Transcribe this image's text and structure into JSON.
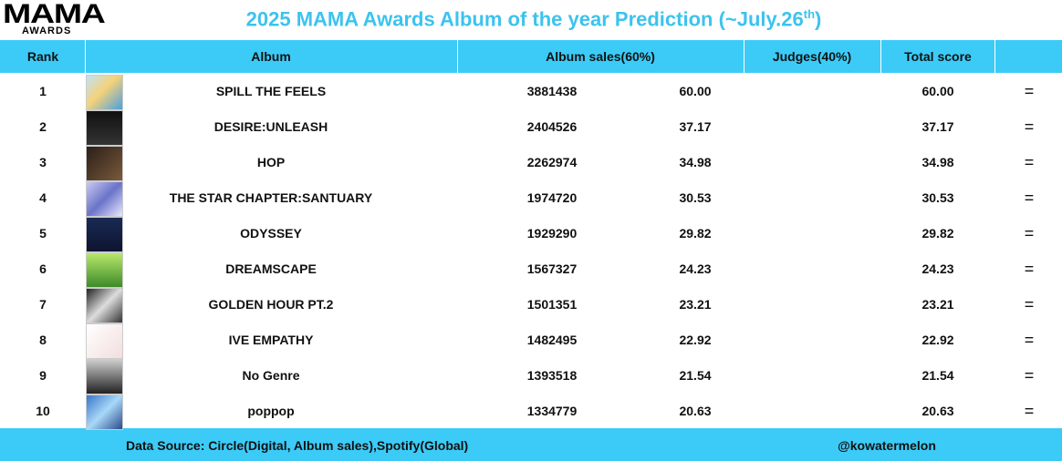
{
  "logo": {
    "main": "MAMA",
    "sub": "AWARDS"
  },
  "title": {
    "main": "2025 MAMA Awards Album of the year Prediction (~July.26",
    "sup": "th",
    "end": ")"
  },
  "table": {
    "header": [
      "Rank",
      "Album",
      "Album sales(60%)",
      "Judges(40%)",
      "Total score"
    ],
    "rows": [
      [
        "1",
        "SPILL THE FEELS",
        "3881438",
        "60.00",
        "60.00",
        "="
      ],
      [
        "2",
        "DESIRE:UNLEASH",
        "2404526",
        "37.17",
        "37.17",
        "="
      ],
      [
        "3",
        "HOP",
        "2262974",
        "34.98",
        "34.98",
        "="
      ],
      [
        "4",
        "THE STAR CHAPTER:SANTUARY",
        "1974720",
        "30.53",
        "30.53",
        "="
      ],
      [
        "5",
        "ODYSSEY",
        "1929290",
        "29.82",
        "29.82",
        "="
      ],
      [
        "6",
        "DREAMSCAPE",
        "1567327",
        "24.23",
        "24.23",
        "="
      ],
      [
        "7",
        "GOLDEN HOUR PT.2",
        "1501351",
        "23.21",
        "23.21",
        "="
      ],
      [
        "8",
        "IVE EMPATHY",
        "1482495",
        "22.92",
        "22.92",
        "="
      ],
      [
        "9",
        "No Genre",
        "1393518",
        "21.54",
        "21.54",
        "="
      ],
      [
        "10",
        "poppop",
        "1334779",
        "20.63",
        "20.63",
        "="
      ]
    ]
  },
  "footer": {
    "source": "Data Source: Circle(Digital, Album sales),Spotify(Global)",
    "credit": "@kowatermelon"
  }
}
